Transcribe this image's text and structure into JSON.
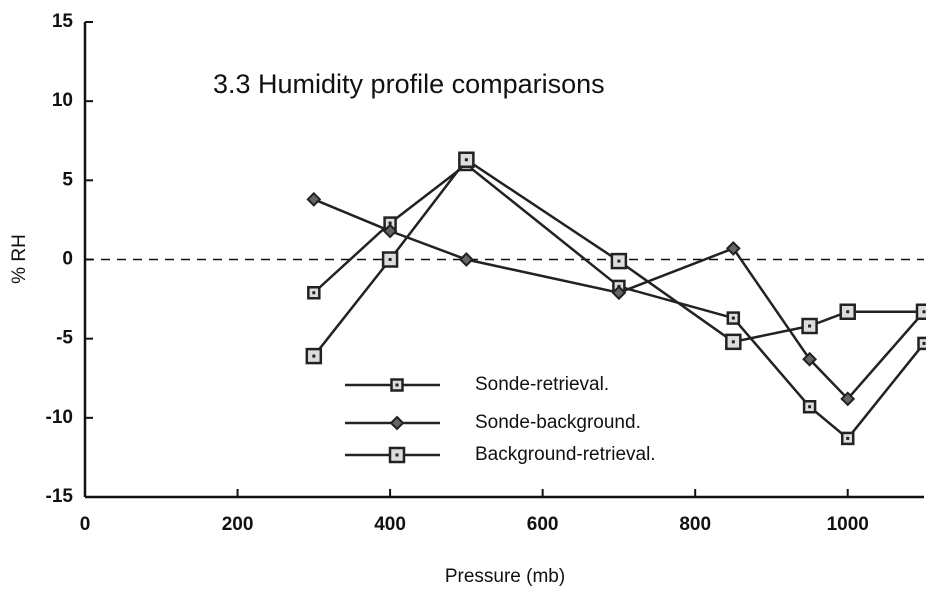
{
  "chart_data": {
    "type": "line",
    "title": "3.3 Humidity profile comparisons",
    "xlabel": "Pressure (mb)",
    "ylabel": "% RH",
    "x": [
      300,
      400,
      500,
      700,
      850,
      950,
      1000,
      1100
    ],
    "series": [
      {
        "name": "Sonde-retrieval.",
        "color": "#222222",
        "marker": "square",
        "values": [
          -2.1,
          2.3,
          6.0,
          -1.7,
          -3.7,
          -9.3,
          -11.3,
          -5.3
        ]
      },
      {
        "name": "Sonde-background.",
        "color": "#222222",
        "marker": "diamond",
        "values": [
          3.8,
          1.8,
          0,
          -2.1,
          0.7,
          -6.3,
          -8.8,
          -3.3
        ]
      },
      {
        "name": "Background-retrieval.",
        "color": "#222222",
        "marker": "square",
        "values": [
          -6.1,
          0,
          6.3,
          -0.1,
          -5.2,
          -4.2,
          -3.3,
          -3.3
        ]
      }
    ],
    "xlim": [
      0,
      1100
    ],
    "xticks": [
      0,
      200,
      400,
      600,
      800,
      1000
    ],
    "ylim": [
      -15,
      15
    ],
    "yticks": [
      -15,
      -10,
      -5,
      0,
      5,
      10,
      15
    ],
    "zero_line": true,
    "grid": false,
    "legend": "lower center"
  }
}
